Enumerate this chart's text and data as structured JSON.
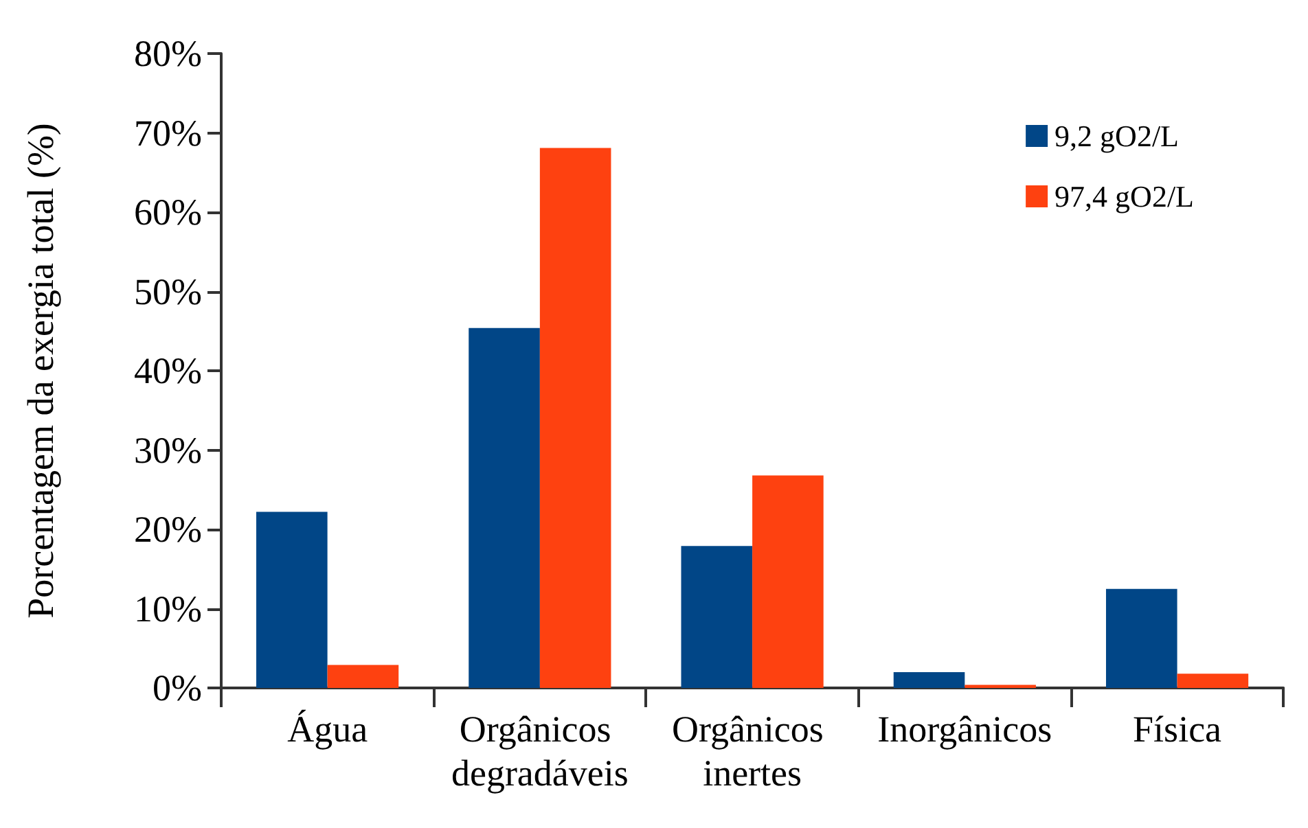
{
  "chart_data": {
    "type": "bar",
    "ylabel": "Porcentagem da exergia total (%)",
    "categories": [
      "Água",
      "Orgânicos degradáveis",
      "Orgânicos inertes",
      "Inorgânicos",
      "Física"
    ],
    "series": [
      {
        "name": "9,2 gO2/L",
        "color": "#014687",
        "values": [
          22.2,
          45.4,
          17.9,
          2.0,
          12.5
        ]
      },
      {
        "name": "97,4 gO2/L",
        "color": "#fe4110",
        "values": [
          2.9,
          68.1,
          26.8,
          0.4,
          1.8
        ]
      }
    ],
    "ylim": [
      0,
      80
    ],
    "yticks": [
      {
        "value": 0,
        "label": "0%"
      },
      {
        "value": 10,
        "label": "10%"
      },
      {
        "value": 20,
        "label": "20%"
      },
      {
        "value": 30,
        "label": "30%"
      },
      {
        "value": 40,
        "label": "40%"
      },
      {
        "value": 50,
        "label": "50%"
      },
      {
        "value": 60,
        "label": "60%"
      },
      {
        "value": 70,
        "label": "70%"
      },
      {
        "value": 80,
        "label": "80%"
      }
    ],
    "grid": false,
    "legend": "top right"
  }
}
